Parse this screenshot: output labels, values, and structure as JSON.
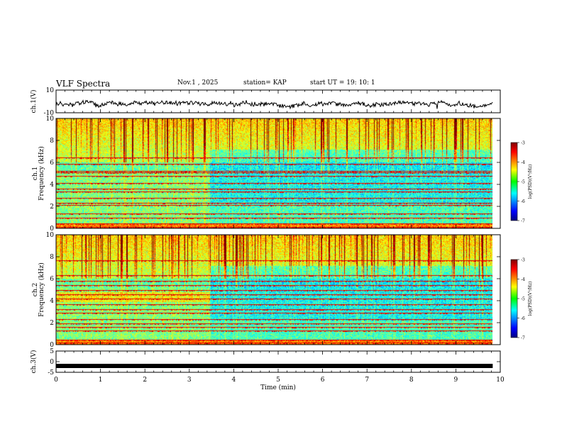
{
  "header": {
    "title": "VLF Spectra",
    "date": "Nov.1 , 2025",
    "station": "station= KAP",
    "start": "start UT = 19: 10: 1"
  },
  "chart_data": [
    {
      "type": "line",
      "name": "ch1-waveform",
      "ylabel": "ch.1(V)",
      "ylim": [
        -10,
        10
      ],
      "yticks": [
        "10",
        "-10"
      ],
      "xlim": [
        0,
        10
      ],
      "baseline": -2
    },
    {
      "type": "heatmap",
      "name": "ch1-spectrogram",
      "ylabel": "ch.1 Frequency (kHz)",
      "ylim": [
        0,
        10
      ],
      "yticks": [
        "0",
        "2",
        "4",
        "6",
        "8",
        "10"
      ],
      "xlim": [
        0,
        10
      ],
      "data_extent_min": 9.83,
      "colorbar": {
        "label": "log(PSD)(V²/Hz)",
        "ticks": [
          "-3",
          "-4",
          "-5",
          "-6",
          "-7"
        ],
        "range": [
          -7,
          -3
        ]
      }
    },
    {
      "type": "heatmap",
      "name": "ch2-spectrogram",
      "ylabel": "ch.2 Frequency (kHz)",
      "ylim": [
        0,
        10
      ],
      "yticks": [
        "0",
        "2",
        "4",
        "6",
        "8",
        "10"
      ],
      "xlim": [
        0,
        10
      ],
      "data_extent_min": 9.83,
      "colorbar": {
        "label": "log(PSD)(V²/Hz)",
        "ticks": [
          "-3",
          "-4",
          "-5",
          "-6",
          "-7"
        ],
        "range": [
          -7,
          -3
        ]
      }
    },
    {
      "type": "line",
      "name": "ch3-waveform",
      "ylabel": "ch.3(V)",
      "ylim": [
        -5,
        5
      ],
      "yticks": [
        "5",
        "0",
        "-5"
      ],
      "xlim": [
        0,
        10
      ],
      "baseline": -2,
      "xlabel": "Time (min)",
      "xticks": [
        "0",
        "1",
        "2",
        "3",
        "4",
        "5",
        "6",
        "7",
        "8",
        "9",
        "10"
      ]
    }
  ]
}
